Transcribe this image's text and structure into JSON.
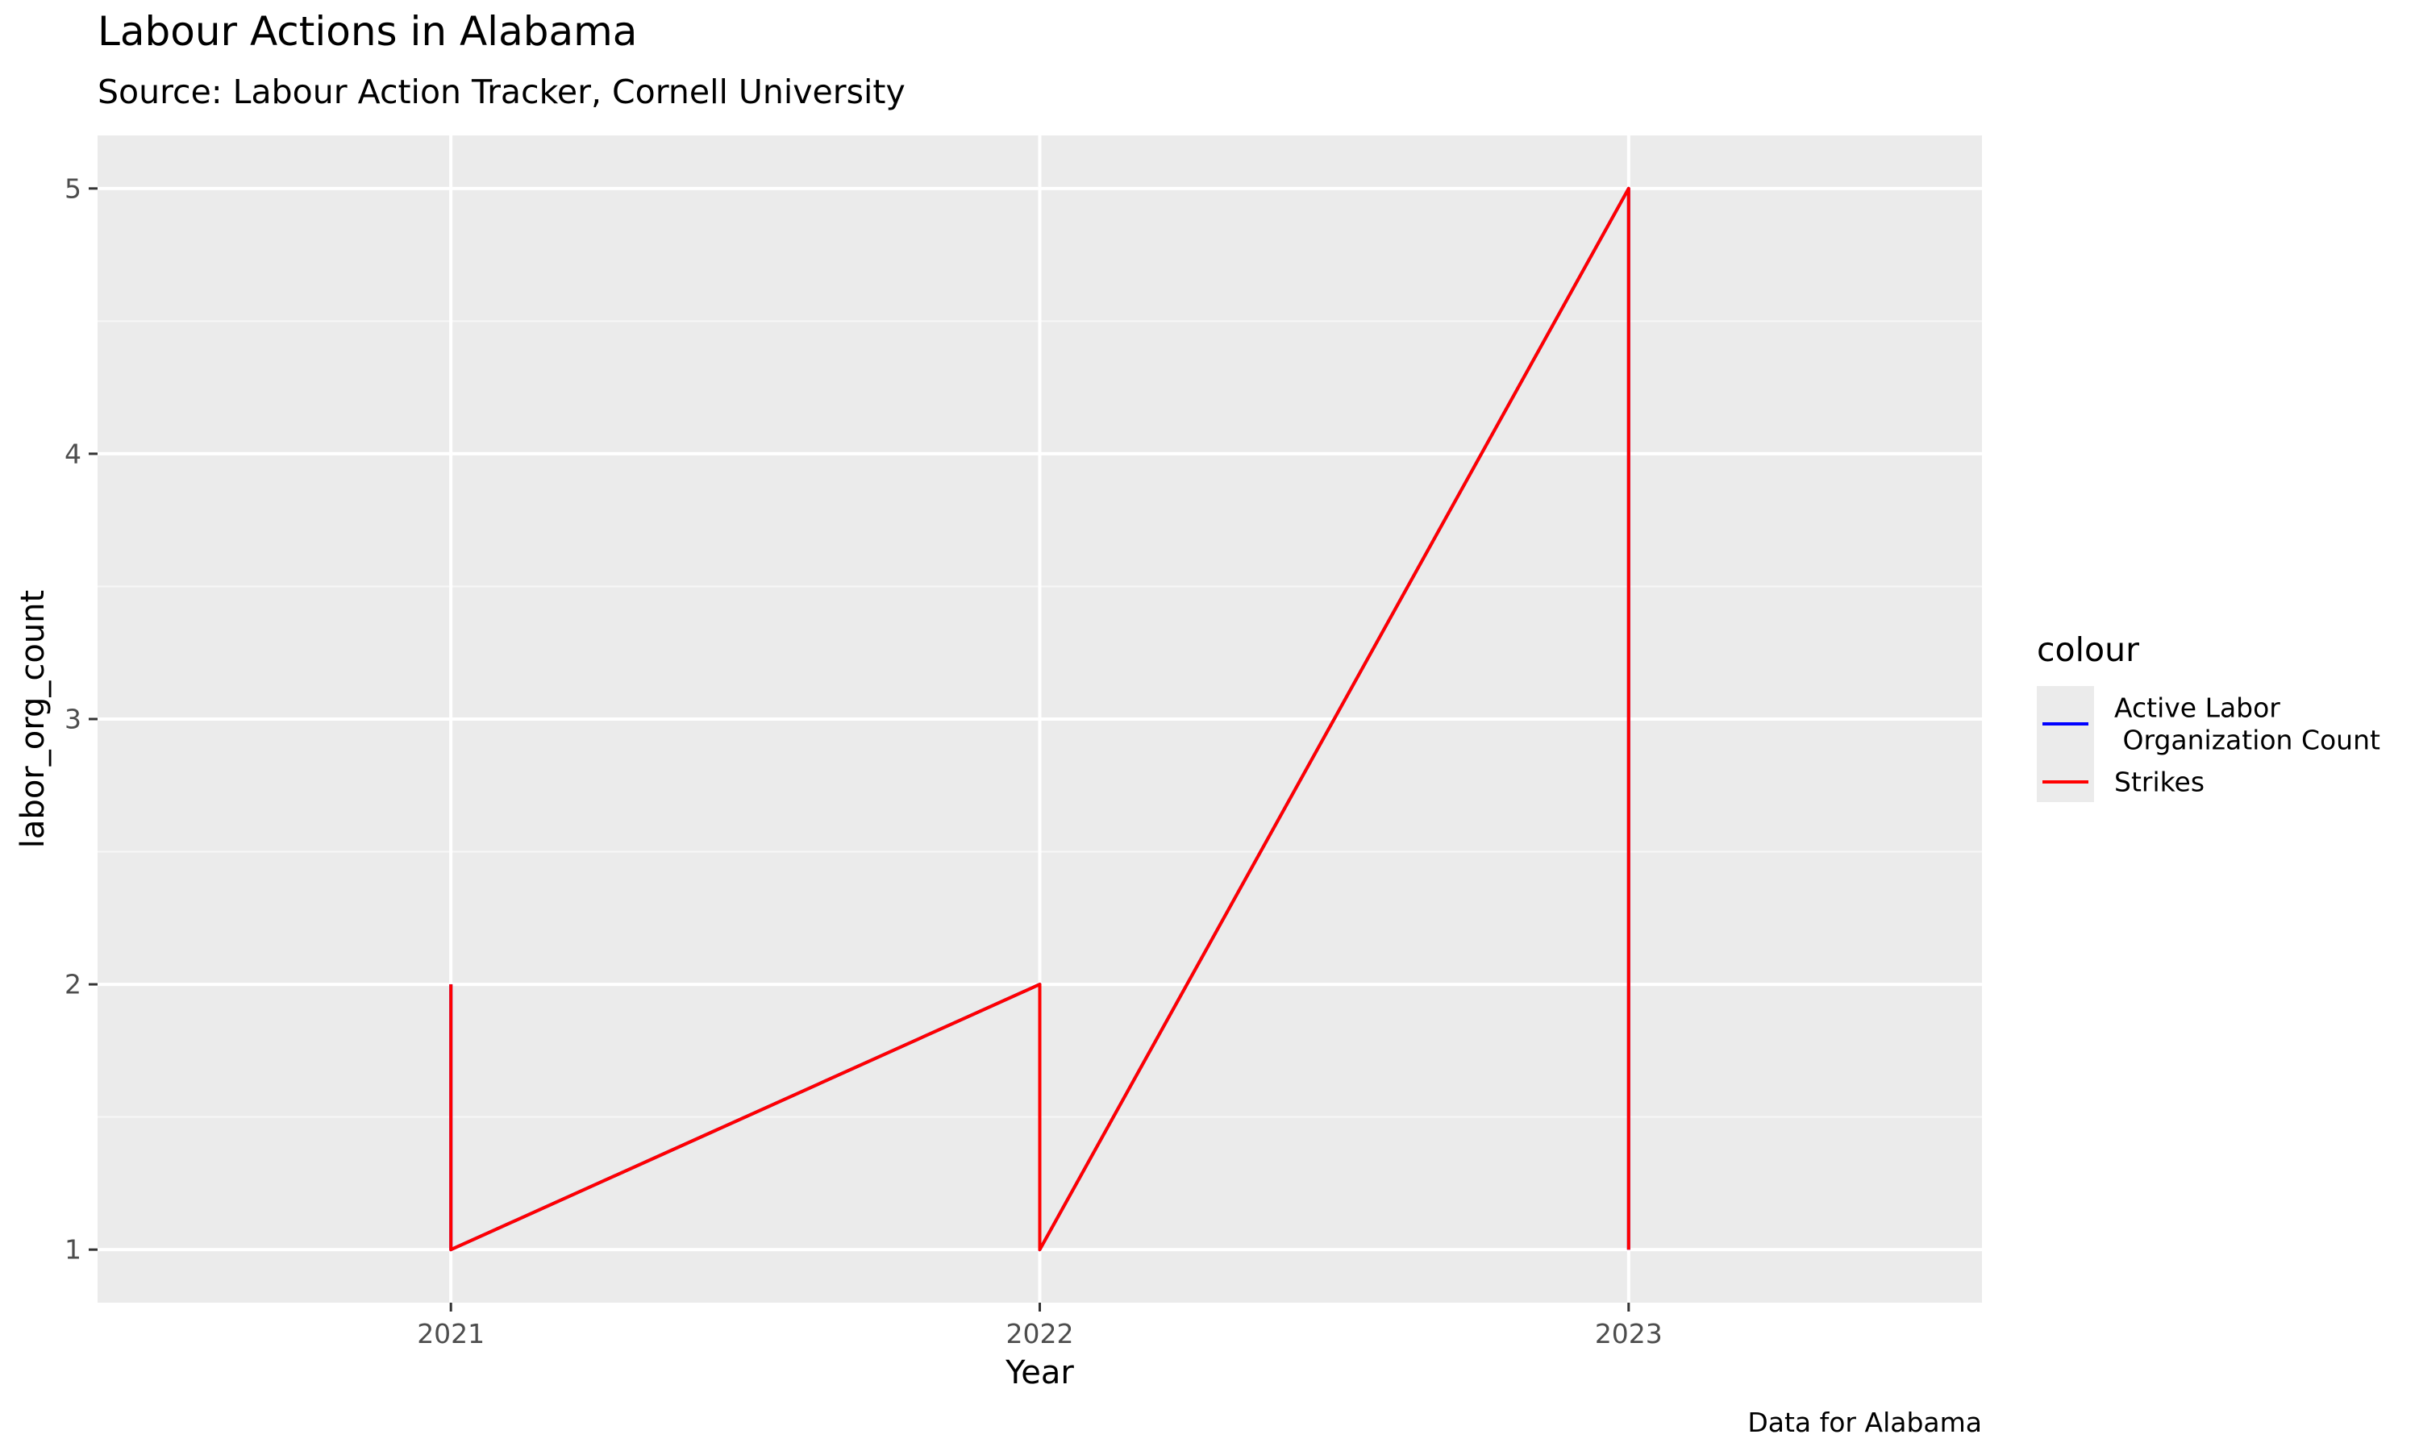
{
  "colors": {
    "panel_background": "#EBEBEB",
    "grid_major": "#FFFFFF",
    "grid_minor": "#F7F7F7",
    "axis_text": "#4D4D4D",
    "legend_key_background": "#EBEBEB"
  },
  "chart_data": {
    "type": "line",
    "title": "Labour Actions in Alabama",
    "subtitle": "Source: Labour Action Tracker, Cornell University",
    "caption": "Data for Alabama",
    "xlabel": "Year",
    "ylabel": "labor_org_count",
    "xlim": [
      2020.4,
      2023.6
    ],
    "ylim": [
      0.8,
      5.2
    ],
    "x_ticks": [
      2021,
      2022,
      2023
    ],
    "y_ticks": [
      1,
      2,
      3,
      4,
      5
    ],
    "y_minor_ticks": [
      1.5,
      2.5,
      3.5,
      4.5
    ],
    "grid": true,
    "legend": {
      "title": "colour",
      "position": "right",
      "entries": [
        {
          "label_lines": [
            "Active Labor",
            " Organization Count"
          ],
          "color": "#0000FF"
        },
        {
          "label_lines": [
            "Strikes"
          ],
          "color": "#FF0000"
        }
      ]
    },
    "series": [
      {
        "color": "#0000FF",
        "x": [
          2021,
          2021,
          2022,
          2022,
          2023,
          2023
        ],
        "y": [
          2,
          1,
          2,
          1,
          5,
          1
        ]
      },
      {
        "color": "#FF0000",
        "x": [
          2021,
          2021,
          2022,
          2022,
          2023,
          2023
        ],
        "y": [
          2,
          1,
          2,
          1,
          5,
          1
        ]
      }
    ]
  }
}
